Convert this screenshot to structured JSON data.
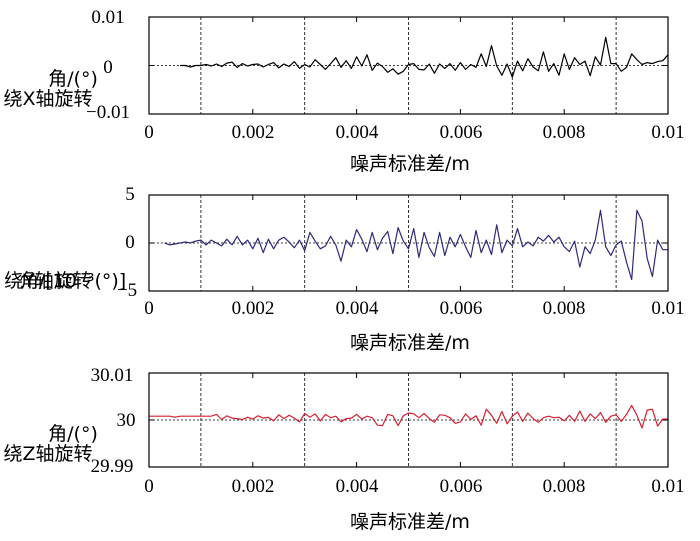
{
  "chart_data": [
    {
      "type": "line",
      "ylabel_lines": [
        "绕X轴旋转",
        "角/(°)"
      ],
      "xlabel": "噪声标准差/m",
      "xlim": [
        0,
        0.01
      ],
      "ylim": [
        -0.01,
        0.01
      ],
      "xticks": [
        0,
        0.002,
        0.004,
        0.006,
        0.008,
        0.01
      ],
      "xtick_labels": [
        "0",
        "0.002",
        "0.004",
        "0.006",
        "0.008",
        "0.01"
      ],
      "yticks": [
        -0.01,
        0,
        0.01
      ],
      "ytick_labels": [
        "−0.01",
        "0",
        "0.01"
      ],
      "zero_line": 0,
      "vertical_grid": [
        0.001,
        0.003,
        0.005,
        0.007,
        0.009
      ],
      "series_color": "#000000",
      "x": [
        0.0006,
        0.0007,
        0.0008,
        0.0009,
        0.001,
        0.0011,
        0.0012,
        0.0013,
        0.0014,
        0.0015,
        0.0016,
        0.0017,
        0.0018,
        0.0019,
        0.002,
        0.0021,
        0.0022,
        0.0023,
        0.0024,
        0.0025,
        0.0026,
        0.0027,
        0.0028,
        0.0029,
        0.003,
        0.0031,
        0.0032,
        0.0033,
        0.0034,
        0.0035,
        0.0036,
        0.0037,
        0.0038,
        0.0039,
        0.004,
        0.0041,
        0.0042,
        0.0043,
        0.0044,
        0.0045,
        0.0046,
        0.0047,
        0.0048,
        0.0049,
        0.005,
        0.0051,
        0.0052,
        0.0053,
        0.0054,
        0.0055,
        0.0056,
        0.0057,
        0.0058,
        0.0059,
        0.006,
        0.0061,
        0.0062,
        0.0063,
        0.0064,
        0.0065,
        0.0066,
        0.0067,
        0.0068,
        0.0069,
        0.007,
        0.0071,
        0.0072,
        0.0073,
        0.0074,
        0.0075,
        0.0076,
        0.0077,
        0.0078,
        0.0079,
        0.008,
        0.0081,
        0.0082,
        0.0083,
        0.0084,
        0.0085,
        0.0086,
        0.0087,
        0.0088,
        0.0089,
        0.009,
        0.0091,
        0.0092,
        0.0093,
        0.0094,
        0.0095,
        0.0096,
        0.0097,
        0.0098,
        0.0099,
        0.01
      ],
      "y": [
        0,
        0,
        -0.0003,
        0,
        0,
        0.0002,
        -0.0001,
        0.0003,
        -0.0002,
        0.0005,
        0.0007,
        -0.0004,
        0.0004,
        -0.0001,
        0.0002,
        0.0003,
        -0.0003,
        0.0002,
        0.0006,
        -0.0005,
        0.0003,
        -0.0002,
        0.0008,
        -0.0006,
        0.0002,
        -0.0003,
        0.0012,
        0.0002,
        -0.0008,
        0.0004,
        0.0016,
        -0.0004,
        0.001,
        -0.0006,
        0.0018,
        -0.0001,
        0.0022,
        -0.001,
        0.0005,
        -0.0002,
        -0.0014,
        -0.0007,
        -0.0018,
        -0.0012,
        0.0002,
        0.0004,
        -0.0008,
        -0.0009,
        0.0003,
        -0.0016,
        0.0003,
        -0.0006,
        0.0004,
        -0.001,
        0.0006,
        -0.0008,
        0.0002,
        -0.0004,
        0.0024,
        -0.0002,
        0.0041,
        -0.0001,
        -0.002,
        0.0003,
        -0.0024,
        0.0009,
        -0.0011,
        0.0014,
        -0.0003,
        -0.0011,
        0.0028,
        -0.0012,
        0.0004,
        -0.002,
        0.0024,
        -0.0008,
        0.0016,
        0.0002,
        0.0009,
        -0.0021,
        0.0018,
        0.0001,
        0.0058,
        0.0004,
        0.0004,
        -0.0012,
        -0.0004,
        0.0024,
        0.0012,
        0.0002,
        0.0006,
        0.0004,
        0.0008,
        0.001,
        0.0022
      ]
    },
    {
      "type": "line",
      "ylabel_lines": [
        "绕Y轴旋转",
        "角/[10⁻³(°)]"
      ],
      "xlabel": "噪声标准差/m",
      "xlim": [
        0,
        0.01
      ],
      "ylim": [
        -5,
        5
      ],
      "xticks": [
        0,
        0.002,
        0.004,
        0.006,
        0.008,
        0.01
      ],
      "xtick_labels": [
        "0",
        "0.002",
        "0.004",
        "0.006",
        "0.008",
        "0.01"
      ],
      "yticks": [
        -5,
        0,
        5
      ],
      "ytick_labels": [
        "−5",
        "0",
        "5"
      ],
      "zero_line": 0,
      "vertical_grid": [
        0.001,
        0.003,
        0.005,
        0.007,
        0.009
      ],
      "series_color": "#2e2a7a",
      "x": [
        0.0003,
        0.0004,
        0.0005,
        0.0006,
        0.0007,
        0.0008,
        0.0009,
        0.001,
        0.0011,
        0.0012,
        0.0013,
        0.0014,
        0.0015,
        0.0016,
        0.0017,
        0.0018,
        0.0019,
        0.002,
        0.0021,
        0.0022,
        0.0023,
        0.0024,
        0.0025,
        0.0026,
        0.0027,
        0.0028,
        0.0029,
        0.003,
        0.0031,
        0.0032,
        0.0033,
        0.0034,
        0.0035,
        0.0036,
        0.0037,
        0.0038,
        0.0039,
        0.004,
        0.0041,
        0.0042,
        0.0043,
        0.0044,
        0.0045,
        0.0046,
        0.0047,
        0.0048,
        0.0049,
        0.005,
        0.0051,
        0.0052,
        0.0053,
        0.0054,
        0.0055,
        0.0056,
        0.0057,
        0.0058,
        0.0059,
        0.006,
        0.0061,
        0.0062,
        0.0063,
        0.0064,
        0.0065,
        0.0066,
        0.0067,
        0.0068,
        0.0069,
        0.007,
        0.0071,
        0.0072,
        0.0073,
        0.0074,
        0.0075,
        0.0076,
        0.0077,
        0.0078,
        0.0079,
        0.008,
        0.0081,
        0.0082,
        0.0083,
        0.0084,
        0.0085,
        0.0086,
        0.0087,
        0.0088,
        0.0089,
        0.009,
        0.0091,
        0.0092,
        0.0093,
        0.0094,
        0.0095,
        0.0096,
        0.0097,
        0.0098,
        0.0099,
        0.01
      ],
      "y": [
        0,
        -0.2,
        -0.1,
        0,
        0.1,
        0,
        0.2,
        0.3,
        -0.2,
        0.3,
        0,
        -0.3,
        0.4,
        -0.2,
        0.7,
        -0.2,
        0.3,
        -0.6,
        0.5,
        -1.0,
        0.4,
        -0.6,
        0.3,
        0.6,
        0.1,
        -0.5,
        0.3,
        -0.8,
        1.1,
        0.2,
        -0.6,
        -0.3,
        0.7,
        -0.2,
        -1.9,
        0.3,
        -0.4,
        1.4,
        0.4,
        -0.9,
        1.1,
        -0.7,
        0.5,
        1.2,
        -1.1,
        1.6,
        0.2,
        -0.6,
        1.5,
        -1.5,
        1.1,
        -0.5,
        -1.4,
        1.1,
        -1.3,
        0.6,
        -0.4,
        0.9,
        -0.4,
        -1.5,
        1.3,
        -1.0,
        0.3,
        -1.2,
        1.9,
        -1.0,
        0.3,
        -0.3,
        1.5,
        -0.4,
        0.1,
        -0.3,
        0.6,
        0.2,
        0.8,
        0.1,
        0.6,
        -0.4,
        -0.9,
        0.2,
        -2.5,
        -0.4,
        -1.1,
        0.3,
        3.4,
        -0.4,
        -1.3,
        -0.2,
        0.2,
        -2.0,
        -3.8,
        3.4,
        2.3,
        -1.6,
        -3.5,
        0.3,
        -0.7,
        -0.7
      ]
    },
    {
      "type": "line",
      "ylabel_lines": [
        "绕Z轴旋转",
        "角/(°)"
      ],
      "xlabel": "噪声标准差/m",
      "xlim": [
        0,
        0.01
      ],
      "ylim": [
        29.99,
        30.01
      ],
      "xticks": [
        0,
        0.002,
        0.004,
        0.006,
        0.008,
        0.01
      ],
      "xtick_labels": [
        "0",
        "0.002",
        "0.004",
        "0.006",
        "0.008",
        "0.01"
      ],
      "yticks": [
        29.99,
        30,
        30.01
      ],
      "ytick_labels": [
        "29.99",
        "30",
        "30.01"
      ],
      "zero_line": 30,
      "vertical_grid": [
        0.001,
        0.003,
        0.005,
        0.007,
        0.009
      ],
      "series_color": "#d62030",
      "x": [
        0.0,
        0.0001,
        0.0002,
        0.0003,
        0.0004,
        0.0005,
        0.0006,
        0.0007,
        0.0008,
        0.0009,
        0.001,
        0.0011,
        0.0012,
        0.0013,
        0.0014,
        0.0015,
        0.0016,
        0.0017,
        0.0018,
        0.0019,
        0.002,
        0.0021,
        0.0022,
        0.0023,
        0.0024,
        0.0025,
        0.0026,
        0.0027,
        0.0028,
        0.0029,
        0.003,
        0.0031,
        0.0032,
        0.0033,
        0.0034,
        0.0035,
        0.0036,
        0.0037,
        0.0038,
        0.0039,
        0.004,
        0.0041,
        0.0042,
        0.0043,
        0.0044,
        0.0045,
        0.0046,
        0.0047,
        0.0048,
        0.0049,
        0.005,
        0.0051,
        0.0052,
        0.0053,
        0.0054,
        0.0055,
        0.0056,
        0.0057,
        0.0058,
        0.0059,
        0.006,
        0.0061,
        0.0062,
        0.0063,
        0.0064,
        0.0065,
        0.0066,
        0.0067,
        0.0068,
        0.0069,
        0.007,
        0.0071,
        0.0072,
        0.0073,
        0.0074,
        0.0075,
        0.0076,
        0.0077,
        0.0078,
        0.0079,
        0.008,
        0.0081,
        0.0082,
        0.0083,
        0.0084,
        0.0085,
        0.0086,
        0.0087,
        0.0088,
        0.0089,
        0.009,
        0.0091,
        0.0092,
        0.0093,
        0.0094,
        0.0095,
        0.0096,
        0.0097,
        0.0098,
        0.0099,
        0.01
      ],
      "y": [
        30.0008,
        30.0008,
        30.0008,
        30.0008,
        30.0008,
        30.0006,
        30.0008,
        30.0008,
        30.0008,
        30.0008,
        30.0008,
        30.0008,
        30.0008,
        30.0012,
        30.0001,
        30.0009,
        30.0004,
        30.0003,
        30.0001,
        30.0006,
        30.0002,
        30.0009,
        30.0004,
        30.0006,
        29.9998,
        30.0011,
        30.0003,
        30.001,
        30.0004,
        29.9996,
        30.0014,
        30.0006,
        30.0013,
        29.9998,
        30.0012,
        30.0005,
        30.0008,
        29.9996,
        30.0003,
        30.0004,
        30.0012,
        30.0002,
        30.0008,
        30.0005,
        29.9989,
        29.9988,
        30.0012,
        30.0009,
        29.9988,
        30.0009,
        30.0015,
        30.0013,
        30.0005,
        30.0014,
        30.0003,
        29.9995,
        30.0011,
        30.001,
        30.0005,
        29.9993,
        29.9996,
        30.0013,
        30.0001,
        30.0009,
        29.9989,
        30.0023,
        30.001,
        29.9993,
        30.0018,
        29.9992,
        30.0008,
        30.0017,
        29.9997,
        30.0015,
        30.0003,
        29.9995,
        30.0005,
        30.0008,
        30.0005,
        30.0006,
        29.9998,
        30.001,
        29.9997,
        30.0019,
        29.9997,
        30.0013,
        30.0003,
        30.0016,
        29.9995,
        30.0008,
        30.0011,
        29.9997,
        30.0012,
        30.0031,
        30.001,
        29.9983,
        30.0021,
        30.0023,
        29.9987,
        30.0002,
        30.0002
      ]
    }
  ]
}
